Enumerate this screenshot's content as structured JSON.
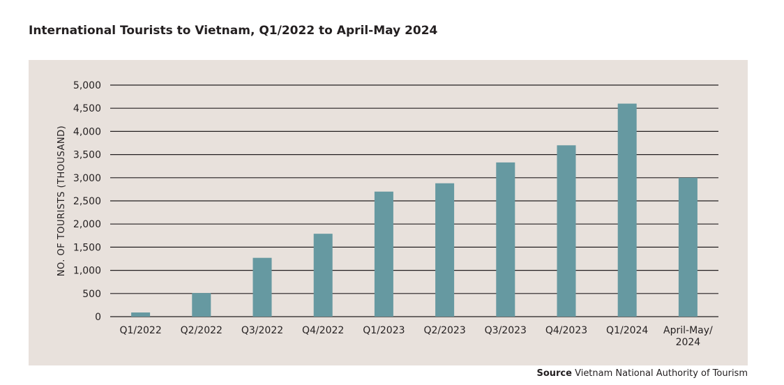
{
  "chart_data": {
    "type": "bar",
    "title": "International Tourists to Vietnam, Q1/2022 to April-May 2024",
    "ylabel": "NO. OF TOURISTS (THOUSAND)",
    "xlabel": "",
    "categories": [
      "Q1/2022",
      "Q2/2022",
      "Q3/2022",
      "Q4/2022",
      "Q1/2023",
      "Q2/2023",
      "Q3/2023",
      "Q4/2023",
      "Q1/2024",
      "April-May/ 2024"
    ],
    "category_lines": [
      [
        "Q1/2022"
      ],
      [
        "Q2/2022"
      ],
      [
        "Q3/2022"
      ],
      [
        "Q4/2022"
      ],
      [
        "Q1/2023"
      ],
      [
        "Q2/2023"
      ],
      [
        "Q3/2023"
      ],
      [
        "Q4/2023"
      ],
      [
        "Q1/2024"
      ],
      [
        "April-May/",
        "2024"
      ]
    ],
    "values": [
      90,
      510,
      1270,
      1790,
      2700,
      2880,
      3330,
      3700,
      4600,
      3000
    ],
    "ylim": [
      0,
      5000
    ],
    "yticks": [
      0,
      500,
      1000,
      1500,
      2000,
      2500,
      3000,
      3500,
      4000,
      4500,
      5000
    ],
    "ytick_labels": [
      "0",
      "500",
      "1,000",
      "1,500",
      "2,000",
      "2,500",
      "3,000",
      "3,500",
      "4,000",
      "4,500",
      "5,000"
    ],
    "grid": true,
    "colors": {
      "bar": "#6699a1",
      "background": "#e8e1dc",
      "grid": "#231f20"
    }
  },
  "source": {
    "label": "Source",
    "text": "Vietnam National Authority of Tourism"
  }
}
